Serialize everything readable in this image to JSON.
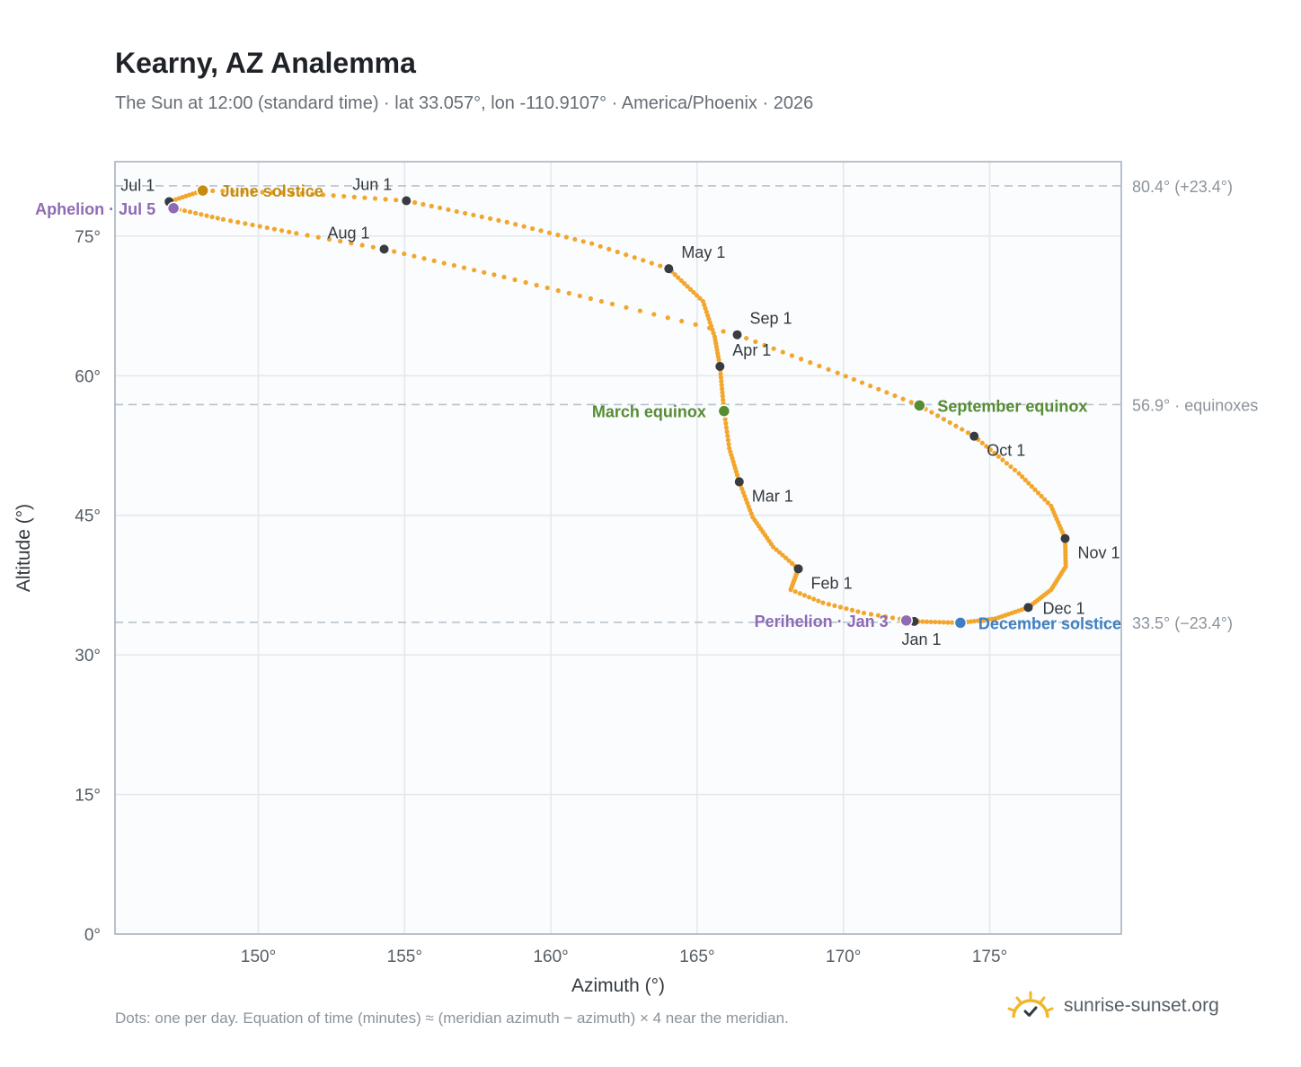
{
  "header": {
    "title": "Kearny, AZ Analemma",
    "subtitle": "The Sun at 12:00 (standard time) · lat 33.057°, lon -110.9107° · America/Phoenix · 2026"
  },
  "footer": {
    "note": "Dots: one per day. Equation of time (minutes) ≈ (meridian azimuth − azimuth) × 4 near the meridian.",
    "brand": "sunrise-sunset.org"
  },
  "colors": {
    "curve": "#f2a62c",
    "month_marker": "#373c44",
    "solstice_june": "#c68c12",
    "equinox": "#568c34",
    "solstice_december": "#3f7fc2",
    "apsis": "#8e6bb4",
    "reference_line": "#b8c3cd",
    "plot_background": "#fafcfd",
    "grid": "#e3e8ed",
    "frame": "#a2adbb"
  },
  "chart_data": {
    "type": "scatter",
    "xlabel": "Azimuth (°)",
    "ylabel": "Altitude (°)",
    "xlim": [
      145.1,
      179.5
    ],
    "ylim": [
      0,
      83
    ],
    "xticks": [
      150,
      155,
      160,
      165,
      170,
      175
    ],
    "xtick_labels": [
      "150°",
      "155°",
      "160°",
      "165°",
      "170°",
      "175°"
    ],
    "yticks": [
      0,
      15,
      30,
      45,
      60,
      75
    ],
    "ytick_labels": [
      "0°",
      "15°",
      "30°",
      "45°",
      "60°",
      "75°"
    ],
    "grid": true,
    "reference_lines": [
      {
        "y": 80.4,
        "label": "80.4° (+23.4°)"
      },
      {
        "y": 56.9,
        "label": "56.9° · equinoxes"
      },
      {
        "y": 33.5,
        "label": "33.5° (−23.4°)"
      }
    ],
    "path_days": [
      {
        "day": 1,
        "az": 172.42,
        "alt": 33.6
      },
      {
        "day": 8,
        "az": 170.7,
        "alt": 34.5
      },
      {
        "day": 15,
        "az": 169.3,
        "alt": 35.6
      },
      {
        "day": 22,
        "az": 168.2,
        "alt": 37.0
      },
      {
        "day": 32,
        "az": 168.46,
        "alt": 39.25
      },
      {
        "day": 40,
        "az": 167.6,
        "alt": 41.6
      },
      {
        "day": 50,
        "az": 166.9,
        "alt": 44.8
      },
      {
        "day": 60,
        "az": 166.44,
        "alt": 48.6
      },
      {
        "day": 70,
        "az": 166.1,
        "alt": 52.2
      },
      {
        "day": 79,
        "az": 165.92,
        "alt": 56.2
      },
      {
        "day": 91,
        "az": 165.78,
        "alt": 61.0
      },
      {
        "day": 100,
        "az": 165.6,
        "alt": 64.2
      },
      {
        "day": 110,
        "az": 165.2,
        "alt": 68.0
      },
      {
        "day": 121,
        "az": 164.03,
        "alt": 71.5
      },
      {
        "day": 130,
        "az": 161.4,
        "alt": 74.2
      },
      {
        "day": 140,
        "az": 158.5,
        "alt": 76.5
      },
      {
        "day": 152,
        "az": 155.06,
        "alt": 78.8
      },
      {
        "day": 162,
        "az": 151.5,
        "alt": 79.6
      },
      {
        "day": 172,
        "az": 148.1,
        "alt": 79.9
      },
      {
        "day": 182,
        "az": 146.95,
        "alt": 78.7
      },
      {
        "day": 186,
        "az": 147.1,
        "alt": 78.0
      },
      {
        "day": 195,
        "az": 148.8,
        "alt": 76.8
      },
      {
        "day": 205,
        "az": 151.3,
        "alt": 75.3
      },
      {
        "day": 213,
        "az": 154.3,
        "alt": 73.6
      },
      {
        "day": 225,
        "az": 158.4,
        "alt": 70.6
      },
      {
        "day": 235,
        "az": 162.1,
        "alt": 67.7
      },
      {
        "day": 244,
        "az": 166.37,
        "alt": 64.4
      },
      {
        "day": 255,
        "az": 169.8,
        "alt": 60.3
      },
      {
        "day": 265,
        "az": 172.6,
        "alt": 56.8
      },
      {
        "day": 274,
        "az": 174.47,
        "alt": 53.5
      },
      {
        "day": 285,
        "az": 176.0,
        "alt": 49.5
      },
      {
        "day": 295,
        "az": 177.1,
        "alt": 46.0
      },
      {
        "day": 305,
        "az": 177.58,
        "alt": 42.5
      },
      {
        "day": 315,
        "az": 177.6,
        "alt": 39.5
      },
      {
        "day": 325,
        "az": 177.1,
        "alt": 37.0
      },
      {
        "day": 335,
        "az": 176.32,
        "alt": 35.1
      },
      {
        "day": 345,
        "az": 175.2,
        "alt": 33.9
      },
      {
        "day": 355,
        "az": 174.0,
        "alt": 33.45
      },
      {
        "day": 366,
        "az": 172.42,
        "alt": 33.6
      }
    ],
    "month_markers": [
      {
        "label": "Jan 1",
        "az": 172.42,
        "alt": 33.6,
        "anchor": "below"
      },
      {
        "label": "Feb 1",
        "az": 168.46,
        "alt": 39.25,
        "anchor": "below-right"
      },
      {
        "label": "Mar 1",
        "az": 166.44,
        "alt": 48.6,
        "anchor": "below-right"
      },
      {
        "label": "Apr 1",
        "az": 165.78,
        "alt": 61.0,
        "anchor": "above-right"
      },
      {
        "label": "May 1",
        "az": 164.03,
        "alt": 71.5,
        "anchor": "above-right"
      },
      {
        "label": "Jun 1",
        "az": 155.06,
        "alt": 78.8,
        "anchor": "above-left"
      },
      {
        "label": "Jul 1",
        "az": 146.95,
        "alt": 78.7,
        "anchor": "above-left"
      },
      {
        "label": "Aug 1",
        "az": 154.3,
        "alt": 73.6,
        "anchor": "above-left"
      },
      {
        "label": "Sep 1",
        "az": 166.37,
        "alt": 64.4,
        "anchor": "above-right"
      },
      {
        "label": "Oct 1",
        "az": 174.47,
        "alt": 53.5,
        "anchor": "below-right"
      },
      {
        "label": "Nov 1",
        "az": 177.58,
        "alt": 42.5,
        "anchor": "below-right"
      },
      {
        "label": "Dec 1",
        "az": 176.32,
        "alt": 35.1,
        "anchor": "right"
      }
    ],
    "events": [
      {
        "label": "June solstice",
        "az": 148.1,
        "alt": 79.9,
        "color": "#c68c12",
        "anchor": "right"
      },
      {
        "label": "March equinox",
        "az": 165.92,
        "alt": 56.2,
        "color": "#568c34",
        "anchor": "left"
      },
      {
        "label": "September equinox",
        "az": 172.6,
        "alt": 56.8,
        "color": "#568c34",
        "anchor": "right"
      },
      {
        "label": "December solstice",
        "az": 174.0,
        "alt": 33.45,
        "color": "#3f7fc2",
        "anchor": "right"
      },
      {
        "label": "Aphelion · Jul 5",
        "az": 147.1,
        "alt": 78.0,
        "color": "#8e6bb4",
        "anchor": "left"
      },
      {
        "label": "Perihelion · Jan 3",
        "az": 172.15,
        "alt": 33.7,
        "color": "#8e6bb4",
        "anchor": "left"
      }
    ]
  }
}
